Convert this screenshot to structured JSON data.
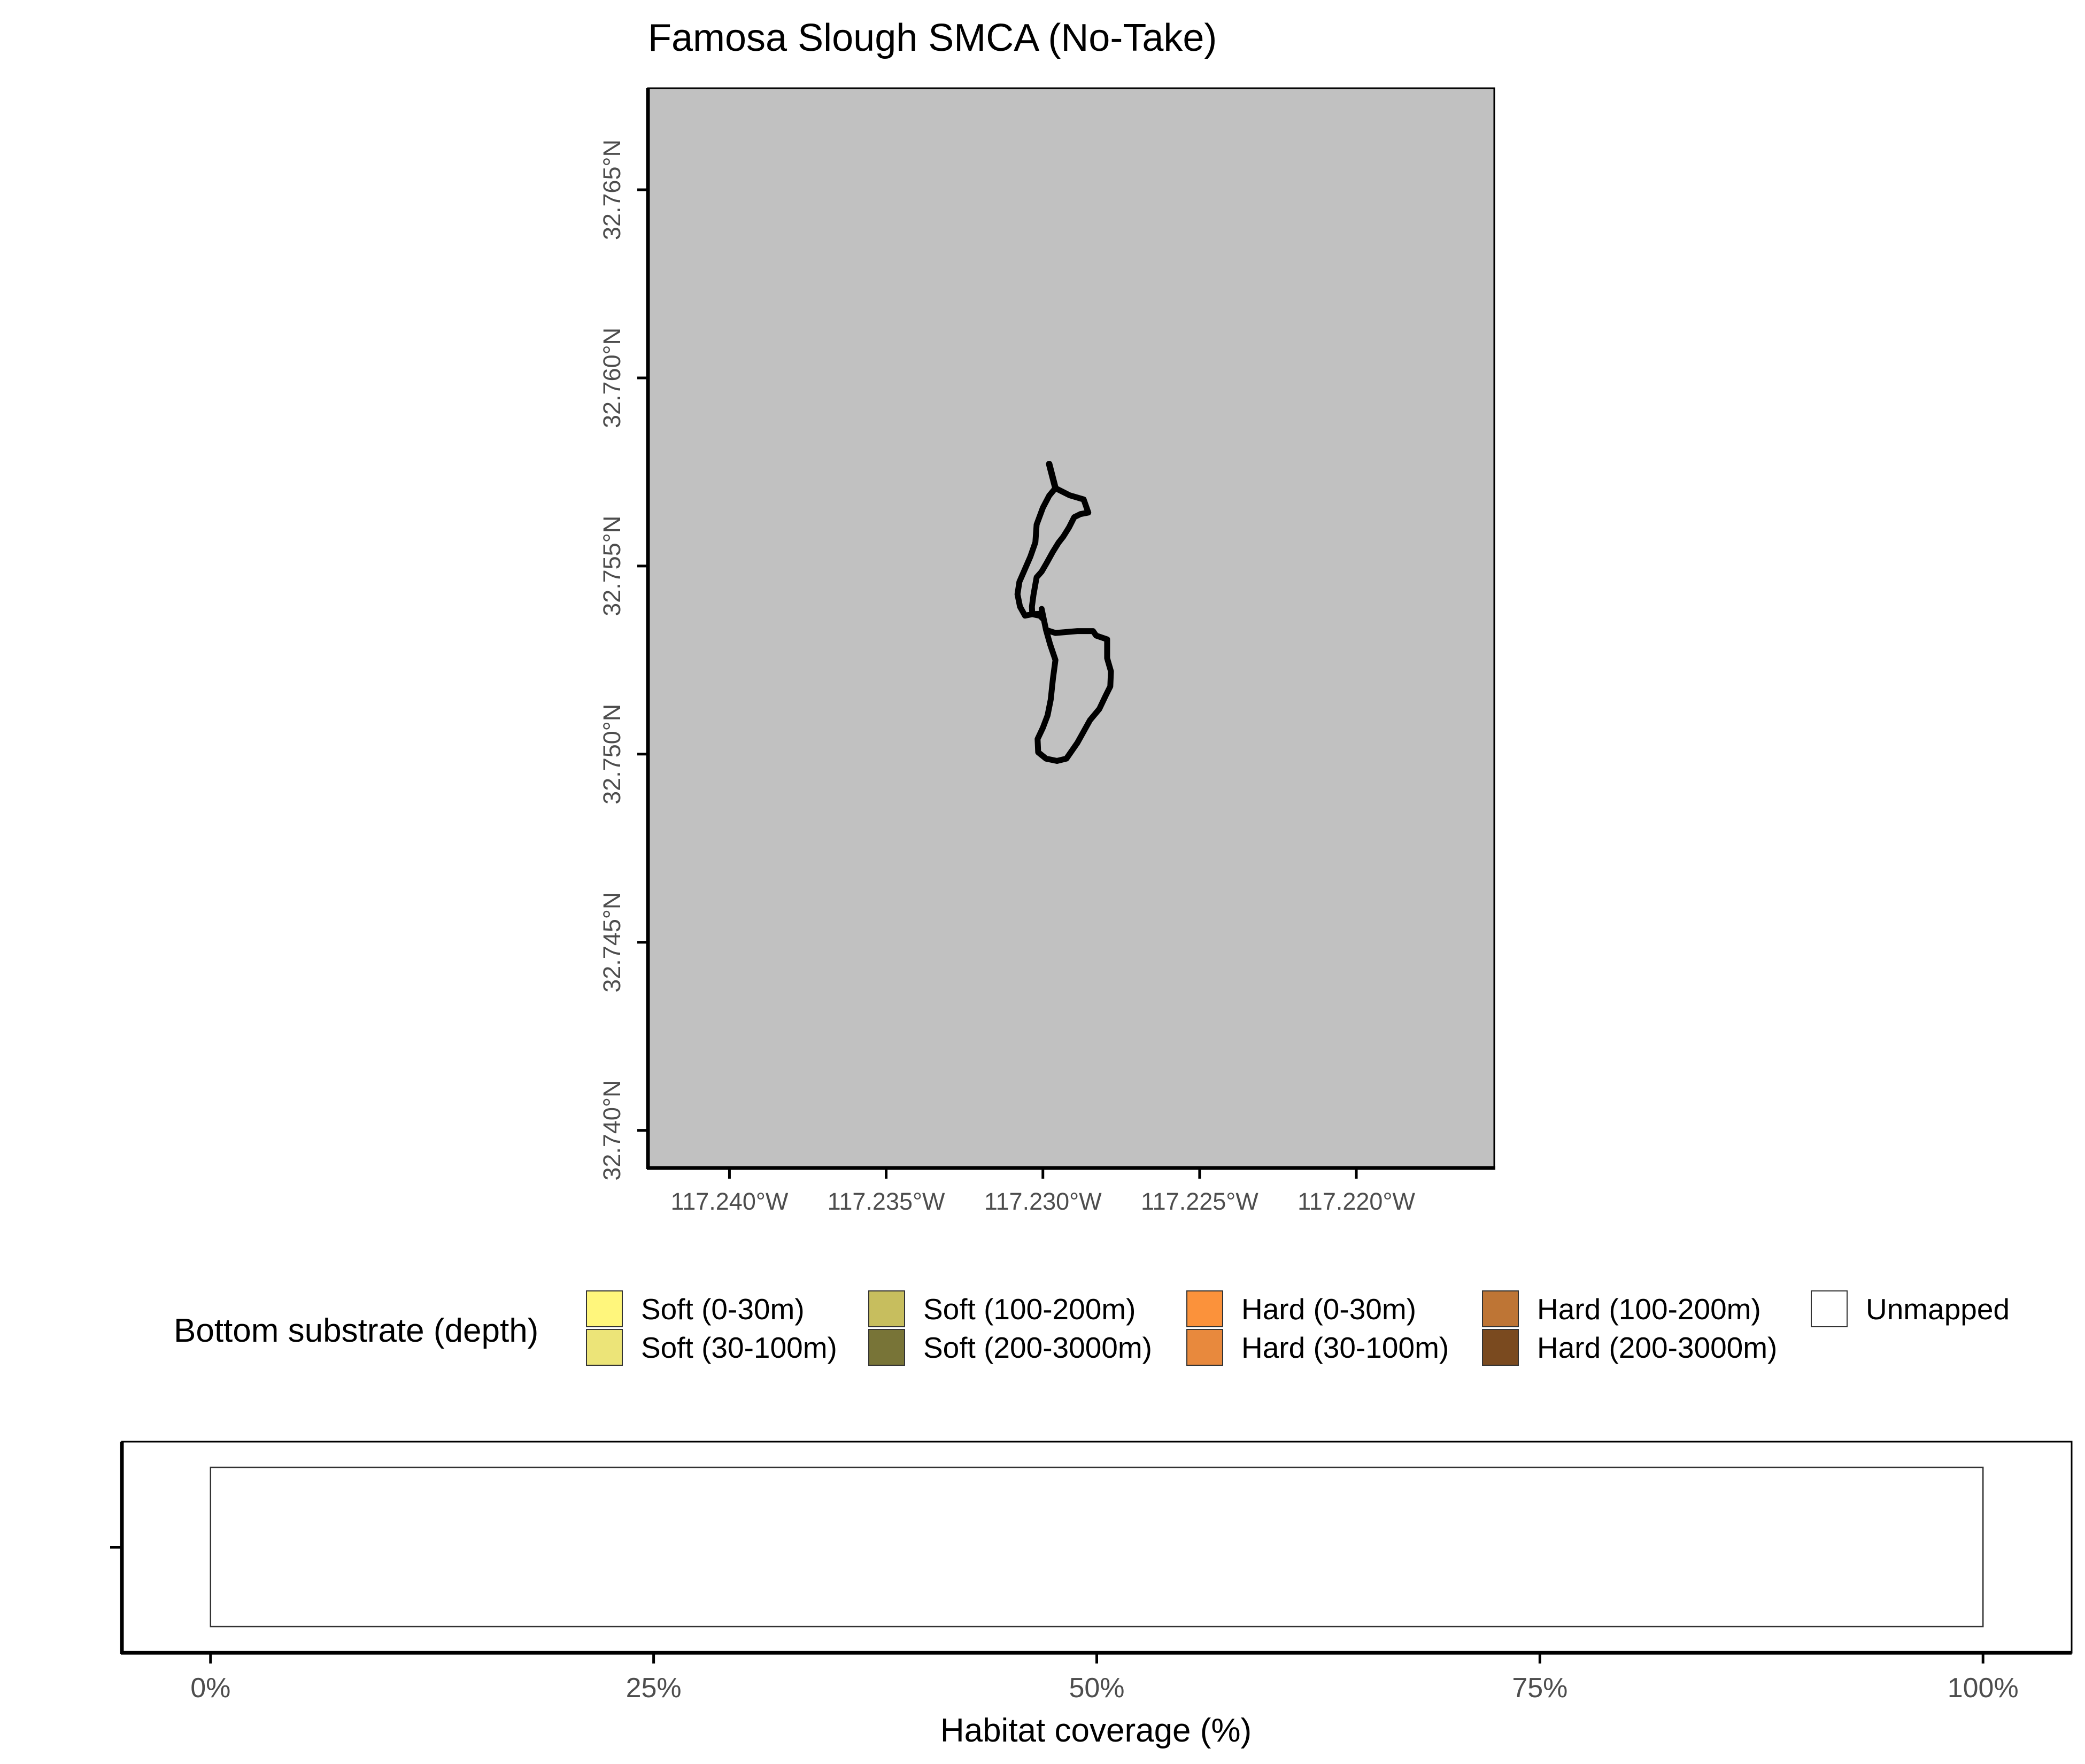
{
  "title": "Famosa Slough SMCA (No-Take)",
  "map": {
    "background_color": "#c1c1c1",
    "lon_range": [
      -117.2426,
      -117.2156
    ],
    "lat_range": [
      32.739,
      32.7677
    ],
    "x_ticks": [
      {
        "value": -117.24,
        "label": "117.240°W"
      },
      {
        "value": -117.235,
        "label": "117.235°W"
      },
      {
        "value": -117.23,
        "label": "117.230°W"
      },
      {
        "value": -117.225,
        "label": "117.225°W"
      },
      {
        "value": -117.22,
        "label": "117.220°W"
      }
    ],
    "y_ticks": [
      {
        "value": 32.765,
        "label": "32.765°N"
      },
      {
        "value": 32.76,
        "label": "32.760°N"
      },
      {
        "value": 32.755,
        "label": "32.755°N"
      },
      {
        "value": 32.75,
        "label": "32.750°N"
      },
      {
        "value": 32.745,
        "label": "32.745°N"
      },
      {
        "value": 32.74,
        "label": "32.740°N"
      }
    ],
    "boundary": {
      "line_color": "#000000",
      "north_lobe": [
        [
          -117.2296,
          32.75707
        ],
        [
          -117.22915,
          32.75688
        ],
        [
          -117.2287,
          32.75677
        ],
        [
          -117.22855,
          32.75642
        ],
        [
          -117.2288,
          32.75638
        ],
        [
          -117.229,
          32.7563
        ],
        [
          -117.22917,
          32.75602
        ],
        [
          -117.22935,
          32.75578
        ],
        [
          -117.2295,
          32.75562
        ],
        [
          -117.22968,
          32.75538
        ],
        [
          -117.22988,
          32.75508
        ],
        [
          -117.23004,
          32.75485
        ],
        [
          -117.2302,
          32.7547
        ],
        [
          -117.23025,
          32.75447
        ],
        [
          -117.2303,
          32.75423
        ],
        [
          -117.23035,
          32.75392
        ],
        [
          -117.23034,
          32.75372
        ],
        [
          -117.2301,
          32.75368
        ],
        [
          -117.23,
          32.7536
        ],
        [
          -117.2301,
          32.75373
        ],
        [
          -117.23034,
          32.75372
        ],
        [
          -117.23057,
          32.75368
        ],
        [
          -117.23073,
          32.75392
        ],
        [
          -117.23081,
          32.75425
        ],
        [
          -117.23075,
          32.75458
        ],
        [
          -117.2304,
          32.75525
        ],
        [
          -117.23024,
          32.75563
        ],
        [
          -117.2302,
          32.7561
        ],
        [
          -117.23,
          32.75655
        ],
        [
          -117.2298,
          32.75687
        ],
        [
          -117.2296,
          32.75707
        ]
      ],
      "south_lobe": [
        [
          -117.23004,
          32.75386
        ],
        [
          -117.2299,
          32.7533
        ],
        [
          -117.2296,
          32.75322
        ],
        [
          -117.2289,
          32.75327
        ],
        [
          -117.2284,
          32.75327
        ],
        [
          -117.2283,
          32.75315
        ],
        [
          -117.22795,
          32.75305
        ],
        [
          -117.22795,
          32.75255
        ],
        [
          -117.22783,
          32.7522
        ],
        [
          -117.22785,
          32.7518
        ],
        [
          -117.228,
          32.75155
        ],
        [
          -117.2282,
          32.7512
        ],
        [
          -117.2285,
          32.7509
        ],
        [
          -117.2289,
          32.7503
        ],
        [
          -117.22925,
          32.74988
        ],
        [
          -117.22955,
          32.74982
        ],
        [
          -117.2299,
          32.74988
        ],
        [
          -117.23015,
          32.75005
        ],
        [
          -117.23017,
          32.7504
        ],
        [
          -117.23,
          32.7507
        ],
        [
          -117.22985,
          32.75103
        ],
        [
          -117.22975,
          32.75145
        ],
        [
          -117.22968,
          32.752
        ],
        [
          -117.2296,
          32.7525
        ],
        [
          -117.22977,
          32.75292
        ],
        [
          -117.2299,
          32.7533
        ]
      ],
      "stub": [
        [
          -117.2296,
          32.75707
        ],
        [
          -117.2298,
          32.75771
        ]
      ]
    }
  },
  "legend": {
    "title": "Bottom substrate (depth)",
    "items": [
      {
        "label": "Soft (0-30m)",
        "color": "#fff67c"
      },
      {
        "label": "Soft (30-100m)",
        "color": "#ece478"
      },
      {
        "label": "Soft (100-200m)",
        "color": "#c7be5e"
      },
      {
        "label": "Soft (200-3000m)",
        "color": "#787437"
      },
      {
        "label": "Hard (0-30m)",
        "color": "#fb923b"
      },
      {
        "label": "Hard (30-100m)",
        "color": "#e8893d"
      },
      {
        "label": "Hard (100-200m)",
        "color": "#be7535"
      },
      {
        "label": "Hard (200-3000m)",
        "color": "#7a4a1f"
      },
      {
        "label": "Unmapped",
        "color": "#ffffff"
      }
    ]
  },
  "chart_data": {
    "type": "bar",
    "orientation": "horizontal",
    "xlabel": "Habitat coverage (%)",
    "ylabel": "",
    "xlim": [
      -0.05,
      1.05
    ],
    "x_ticks": [
      {
        "value": 0,
        "label": "0%"
      },
      {
        "value": 0.25,
        "label": "25%"
      },
      {
        "value": 0.5,
        "label": "50%"
      },
      {
        "value": 0.75,
        "label": "75%"
      },
      {
        "value": 1.0,
        "label": "100%"
      }
    ],
    "series": [
      {
        "name": "Unmapped",
        "values": [
          1.0
        ],
        "color": "#ffffff"
      }
    ]
  }
}
